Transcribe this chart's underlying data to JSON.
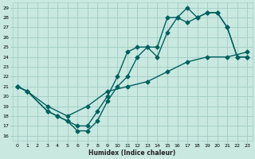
{
  "xlabel": "Humidex (Indice chaleur)",
  "bg_color": "#c8e8e0",
  "grid_color": "#a8d0c8",
  "line_color": "#006060",
  "xlim": [
    -0.5,
    23.5
  ],
  "ylim": [
    15.5,
    29.5
  ],
  "xticks": [
    0,
    1,
    2,
    3,
    4,
    5,
    6,
    7,
    8,
    9,
    10,
    11,
    12,
    13,
    14,
    15,
    16,
    17,
    18,
    19,
    20,
    21,
    22,
    23
  ],
  "yticks": [
    16,
    17,
    18,
    19,
    20,
    21,
    22,
    23,
    24,
    25,
    26,
    27,
    28,
    29
  ],
  "curve1_x": [
    0,
    1,
    3,
    4,
    5,
    6,
    7,
    8,
    9,
    10,
    11,
    12,
    13,
    14,
    15,
    16,
    17,
    18,
    19,
    20,
    21,
    22,
    23
  ],
  "curve1_y": [
    21,
    20.5,
    18.5,
    18,
    17.5,
    16.5,
    16.5,
    17.5,
    19.5,
    21,
    22,
    24,
    25,
    25,
    28,
    28,
    29,
    28,
    28.5,
    28.5,
    27,
    24,
    24
  ],
  "curve2_x": [
    0,
    1,
    3,
    4,
    5,
    6,
    7,
    8,
    9,
    10,
    11,
    12,
    13,
    14,
    15,
    16,
    17,
    18,
    19,
    20,
    21,
    22,
    23
  ],
  "curve2_y": [
    21,
    20.5,
    18.5,
    18,
    17.5,
    17,
    17,
    18.5,
    20,
    22,
    24.5,
    25,
    25,
    24,
    26.5,
    28,
    27.5,
    28,
    28.5,
    28.5,
    27,
    24,
    24
  ],
  "curve3_x": [
    0,
    1,
    3,
    5,
    7,
    9,
    11,
    13,
    15,
    17,
    19,
    21,
    23
  ],
  "curve3_y": [
    21,
    20.5,
    19,
    18,
    19,
    20.5,
    21,
    21.5,
    22.5,
    23.5,
    24,
    24,
    24.5
  ],
  "marker": "D",
  "markersize": 2.5,
  "linewidth": 1.0
}
